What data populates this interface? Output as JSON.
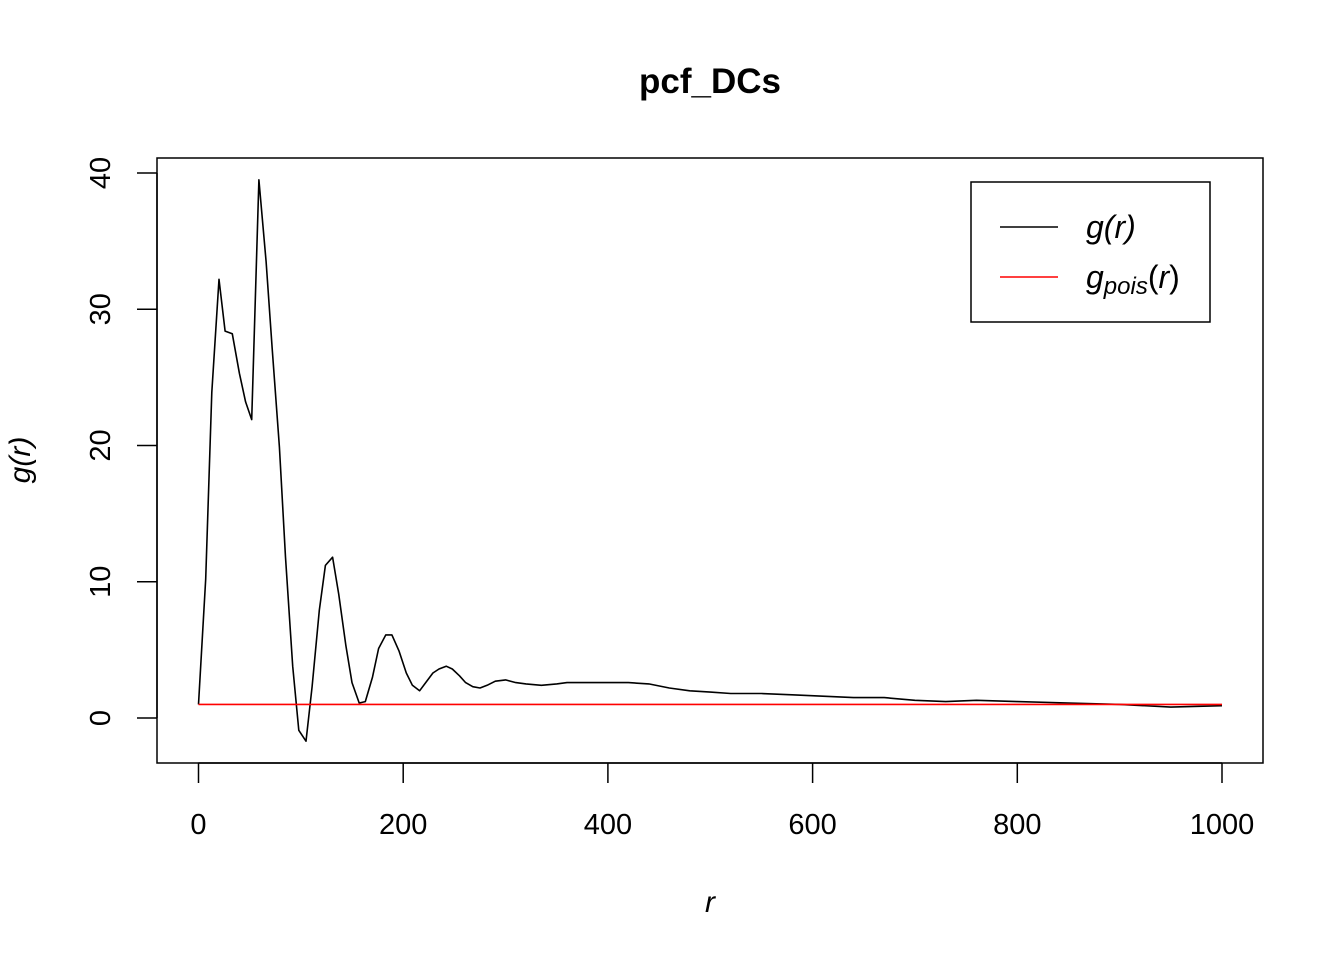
{
  "chart_data": {
    "type": "line",
    "title": "pcf_DCs",
    "xlabel": "r",
    "ylabel": "g(r)",
    "xlim": [
      0,
      1000
    ],
    "ylim": [
      -3.3,
      40.8
    ],
    "x_ticks": [
      "0",
      "200",
      "400",
      "600",
      "800",
      "1000"
    ],
    "y_ticks": [
      "0",
      "10",
      "20",
      "30",
      "40"
    ],
    "grid": false,
    "legend_position": "top-right",
    "series": [
      {
        "name": "g(r)",
        "color": "#000000",
        "x": [
          0,
          7,
          13,
          20,
          26,
          33,
          40,
          46,
          52,
          59,
          66,
          72,
          79,
          85,
          92,
          98,
          105,
          111,
          118,
          124,
          131,
          137,
          144,
          150,
          157,
          163,
          170,
          176,
          183,
          189,
          196,
          203,
          209,
          216,
          222,
          229,
          235,
          242,
          248,
          255,
          261,
          268,
          275,
          282,
          290,
          300,
          310,
          320,
          335,
          350,
          360,
          380,
          400,
          420,
          440,
          460,
          480,
          500,
          520,
          550,
          580,
          610,
          640,
          670,
          700,
          730,
          760,
          800,
          850,
          900,
          950,
          1000
        ],
        "y": [
          1.0,
          10.2,
          23.9,
          32.2,
          28.4,
          28.2,
          25.3,
          23.2,
          21.9,
          39.5,
          33.5,
          27.1,
          19.9,
          11.8,
          3.8,
          -0.9,
          -1.7,
          2.3,
          7.9,
          11.2,
          11.8,
          9.1,
          5.3,
          2.6,
          1.1,
          1.2,
          3.0,
          5.1,
          6.1,
          6.1,
          4.9,
          3.3,
          2.4,
          2.0,
          2.6,
          3.3,
          3.6,
          3.8,
          3.6,
          3.1,
          2.6,
          2.3,
          2.2,
          2.4,
          2.7,
          2.8,
          2.6,
          2.5,
          2.4,
          2.5,
          2.6,
          2.6,
          2.6,
          2.6,
          2.5,
          2.2,
          2.0,
          1.9,
          1.8,
          1.8,
          1.7,
          1.6,
          1.5,
          1.5,
          1.3,
          1.2,
          1.3,
          1.2,
          1.1,
          1.0,
          0.8,
          0.9
        ]
      },
      {
        "name": "g_pois(r)",
        "color": "#ff0000",
        "x": [
          0,
          1000
        ],
        "y": [
          1.0,
          1.0
        ]
      }
    ]
  }
}
